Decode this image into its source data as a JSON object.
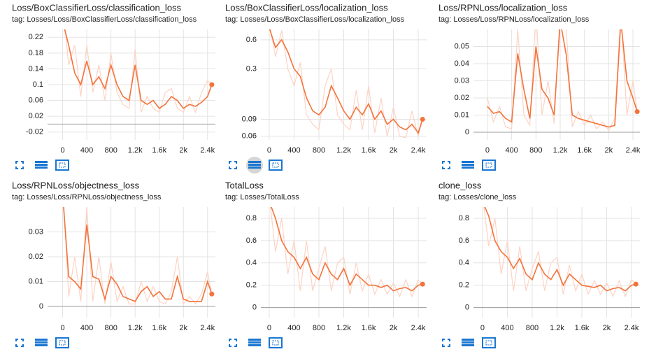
{
  "chart_data": [
    {
      "type": "line",
      "title": "Loss/BoxClassifierLoss/classification_loss",
      "subtitle": "tag: Losses/Loss/BoxClassifierLoss/classification_loss",
      "x": [
        0,
        100,
        200,
        300,
        400,
        500,
        600,
        700,
        800,
        900,
        1000,
        1100,
        1200,
        1300,
        1400,
        1500,
        1600,
        1700,
        1800,
        1900,
        2000,
        2100,
        2200,
        2300,
        2400,
        2470
      ],
      "series": [
        {
          "color": "#fdd3c4",
          "values": [
            0.3,
            0.15,
            0.2,
            0.07,
            0.2,
            0.08,
            0.15,
            0.06,
            0.18,
            0.08,
            0.05,
            0.04,
            0.19,
            0.03,
            0.07,
            0.04,
            0.03,
            0.08,
            0.09,
            0.04,
            0.03,
            0.07,
            0.03,
            0.08,
            0.11,
            0.1
          ]
        },
        {
          "color": "#f4733b",
          "values": [
            0.26,
            0.2,
            0.13,
            0.1,
            0.16,
            0.1,
            0.12,
            0.09,
            0.15,
            0.1,
            0.07,
            0.06,
            0.15,
            0.06,
            0.05,
            0.06,
            0.04,
            0.05,
            0.07,
            0.06,
            0.04,
            0.05,
            0.045,
            0.055,
            0.07,
            0.1
          ]
        }
      ],
      "xlim": [
        -250,
        2530
      ],
      "xticks": [
        0,
        400,
        800,
        {
          "value": 1200,
          "label": "1.2k"
        },
        {
          "value": 1600,
          "label": "1.6k"
        },
        {
          "value": 2000,
          "label": "2k"
        },
        {
          "value": 2400,
          "label": "2.4k"
        }
      ],
      "ylim": [
        -0.04,
        0.24
      ],
      "yticks": [
        -0.02,
        0.02,
        0.06,
        0.1,
        0.14,
        0.18,
        0.22
      ],
      "grid": true,
      "log_y": false
    },
    {
      "type": "line",
      "title": "Loss/BoxClassifierLoss/localization_loss",
      "subtitle": "tag: Losses/Loss/BoxClassifierLoss/localization_loss",
      "x": [
        0,
        100,
        200,
        300,
        400,
        500,
        600,
        700,
        800,
        900,
        1000,
        1100,
        1200,
        1300,
        1400,
        1500,
        1600,
        1700,
        1800,
        1900,
        2000,
        2100,
        2200,
        2300,
        2400,
        2470
      ],
      "series": [
        {
          "color": "#fdd3c4",
          "values": [
            0.9,
            0.4,
            0.75,
            0.3,
            0.2,
            0.35,
            0.1,
            0.08,
            0.07,
            0.2,
            0.3,
            0.1,
            0.08,
            0.07,
            0.18,
            0.07,
            0.2,
            0.065,
            0.15,
            0.06,
            0.12,
            0.06,
            0.058,
            0.11,
            0.06,
            0.09
          ]
        },
        {
          "color": "#f4733b",
          "values": [
            0.8,
            0.5,
            0.6,
            0.45,
            0.3,
            0.25,
            0.15,
            0.11,
            0.1,
            0.12,
            0.2,
            0.15,
            0.11,
            0.09,
            0.12,
            0.1,
            0.13,
            0.09,
            0.11,
            0.08,
            0.09,
            0.075,
            0.07,
            0.08,
            0.065,
            0.09
          ]
        }
      ],
      "xlim": [
        -135,
        2535
      ],
      "xticks": [
        0,
        400,
        800,
        {
          "value": 1200,
          "label": "1.2k"
        },
        {
          "value": 1600,
          "label": "1.6k"
        },
        {
          "value": 2000,
          "label": "2k"
        },
        {
          "value": 2400,
          "label": "2.4k"
        }
      ],
      "ylim": [
        0.055,
        0.77
      ],
      "yticks": [
        0.06,
        0.09,
        0.3,
        0.6
      ],
      "grid": true,
      "log_y": true
    },
    {
      "type": "line",
      "title": "Loss/RPNLoss/localization_loss",
      "subtitle": "tag: Losses/Loss/RPNLoss/localization_loss",
      "x": [
        0,
        100,
        200,
        300,
        400,
        500,
        600,
        700,
        800,
        900,
        1000,
        1100,
        1200,
        1300,
        1400,
        1500,
        1600,
        1700,
        1800,
        1900,
        2000,
        2100,
        2200,
        2300,
        2400,
        2470
      ],
      "series": [
        {
          "color": "#fdd3c4",
          "values": [
            0.02,
            0.006,
            0.015,
            0.003,
            0.002,
            0.06,
            0.01,
            0.004,
            0.07,
            0.01,
            0.03,
            0.005,
            0.07,
            0.06,
            0.003,
            0.012,
            0.004,
            0.01,
            0.002,
            0.006,
            0.001,
            0.008,
            0.07,
            0.01,
            0.03,
            0.012
          ]
        },
        {
          "color": "#f4733b",
          "values": [
            0.015,
            0.011,
            0.012,
            0.008,
            0.006,
            0.046,
            0.025,
            0.008,
            0.05,
            0.025,
            0.02,
            0.01,
            0.065,
            0.045,
            0.01,
            0.008,
            0.007,
            0.006,
            0.005,
            0.004,
            0.003,
            0.004,
            0.065,
            0.03,
            0.02,
            0.012
          ]
        }
      ],
      "xlim": [
        -230,
        2515
      ],
      "xticks": [
        0,
        400,
        800,
        {
          "value": 1200,
          "label": "1.2k"
        },
        {
          "value": 1600,
          "label": "1.6k"
        },
        {
          "value": 2000,
          "label": "2k"
        },
        {
          "value": 2400,
          "label": "2.4k"
        }
      ],
      "ylim": [
        -0.0045,
        0.06
      ],
      "yticks": [
        0,
        0.01,
        0.02,
        0.03,
        0.04,
        0.05
      ],
      "grid": true,
      "log_y": false
    },
    {
      "type": "line",
      "title": "Loss/RPNLoss/objectness_loss",
      "subtitle": "tag: Losses/Loss/RPNLoss/objectness_loss",
      "x": [
        0,
        100,
        200,
        300,
        400,
        500,
        600,
        700,
        800,
        900,
        1000,
        1100,
        1200,
        1300,
        1400,
        1500,
        1600,
        1700,
        1800,
        1900,
        2000,
        2100,
        2200,
        2300,
        2400,
        2470
      ],
      "series": [
        {
          "color": "#fdd3c4",
          "values": [
            0.05,
            0.004,
            0.02,
            0.002,
            0.04,
            0.002,
            0.02,
            0.001,
            0.018,
            0.002,
            0.008,
            0.001,
            0.001,
            0.01,
            0.002,
            0.008,
            0.002,
            0.001,
            0.006,
            0.02,
            0.001,
            0.004,
            0.001,
            0.005,
            0.014,
            0.005
          ]
        },
        {
          "color": "#f4733b",
          "values": [
            0.045,
            0.012,
            0.01,
            0.007,
            0.033,
            0.012,
            0.011,
            0.003,
            0.012,
            0.009,
            0.004,
            0.003,
            0.002,
            0.006,
            0.008,
            0.004,
            0.006,
            0.003,
            0.003,
            0.012,
            0.003,
            0.002,
            0.002,
            0.002,
            0.01,
            0.005
          ]
        }
      ],
      "xlim": [
        -250,
        2530
      ],
      "xticks": [
        0,
        400,
        800,
        {
          "value": 1200,
          "label": "1.2k"
        },
        {
          "value": 1600,
          "label": "1.6k"
        },
        {
          "value": 2000,
          "label": "2k"
        },
        {
          "value": 2400,
          "label": "2.4k"
        }
      ],
      "ylim": [
        -0.0045,
        0.04
      ],
      "yticks": [
        0,
        0.01,
        0.02,
        0.03
      ],
      "grid": true,
      "log_y": false
    },
    {
      "type": "line",
      "title": "TotalLoss",
      "subtitle": "tag: Losses/TotalLoss",
      "x": [
        0,
        100,
        200,
        300,
        400,
        500,
        600,
        700,
        800,
        900,
        1000,
        1100,
        1200,
        1300,
        1400,
        1500,
        1600,
        1700,
        1800,
        1900,
        2000,
        2100,
        2200,
        2300,
        2400,
        2470
      ],
      "series": [
        {
          "color": "#fdd3c4",
          "values": [
            1.0,
            0.5,
            0.8,
            0.3,
            0.6,
            0.15,
            0.6,
            0.15,
            0.35,
            0.55,
            0.15,
            0.4,
            0.45,
            0.12,
            0.4,
            0.15,
            0.3,
            0.12,
            0.25,
            0.12,
            0.22,
            0.1,
            0.25,
            0.1,
            0.25,
            0.21
          ]
        },
        {
          "color": "#f4733b",
          "values": [
            0.95,
            0.8,
            0.6,
            0.5,
            0.45,
            0.35,
            0.45,
            0.3,
            0.25,
            0.4,
            0.3,
            0.25,
            0.35,
            0.2,
            0.3,
            0.25,
            0.2,
            0.2,
            0.18,
            0.2,
            0.15,
            0.17,
            0.18,
            0.15,
            0.2,
            0.21
          ]
        }
      ],
      "xlim": [
        -135,
        2535
      ],
      "xticks": [
        0,
        400,
        800,
        {
          "value": 1200,
          "label": "1.2k"
        },
        {
          "value": 1600,
          "label": "1.6k"
        },
        {
          "value": 2000,
          "label": "2k"
        },
        {
          "value": 2400,
          "label": "2.4k"
        }
      ],
      "ylim": [
        -0.09,
        0.9
      ],
      "yticks": [
        0,
        0.2,
        0.4,
        0.6,
        0.8
      ],
      "grid": true,
      "log_y": false
    },
    {
      "type": "line",
      "title": "clone_loss",
      "subtitle": "tag: Losses/clone_loss",
      "x": [
        0,
        100,
        200,
        300,
        400,
        500,
        600,
        700,
        800,
        900,
        1000,
        1100,
        1200,
        1300,
        1400,
        1500,
        1600,
        1700,
        1800,
        1900,
        2000,
        2100,
        2200,
        2300,
        2400,
        2470
      ],
      "series": [
        {
          "color": "#fdd3c4",
          "values": [
            1.0,
            0.55,
            0.8,
            0.3,
            0.6,
            0.15,
            0.55,
            0.15,
            0.35,
            0.5,
            0.15,
            0.4,
            0.45,
            0.12,
            0.38,
            0.15,
            0.3,
            0.12,
            0.24,
            0.12,
            0.22,
            0.1,
            0.24,
            0.1,
            0.25,
            0.21
          ]
        },
        {
          "color": "#f4733b",
          "values": [
            0.95,
            0.82,
            0.6,
            0.5,
            0.45,
            0.35,
            0.44,
            0.3,
            0.25,
            0.4,
            0.3,
            0.25,
            0.34,
            0.2,
            0.3,
            0.25,
            0.2,
            0.19,
            0.18,
            0.2,
            0.15,
            0.17,
            0.18,
            0.15,
            0.2,
            0.21
          ]
        }
      ],
      "xlim": [
        -146,
        2535
      ],
      "xticks": [
        0,
        400,
        800,
        {
          "value": 1200,
          "label": "1.2k"
        },
        {
          "value": 1600,
          "label": "1.6k"
        },
        {
          "value": 2000,
          "label": "2k"
        },
        {
          "value": 2400,
          "label": "2.4k"
        }
      ],
      "ylim": [
        -0.09,
        0.9
      ],
      "yticks": [
        0,
        0.2,
        0.4,
        0.6,
        0.8
      ],
      "grid": true,
      "log_y": false
    }
  ]
}
